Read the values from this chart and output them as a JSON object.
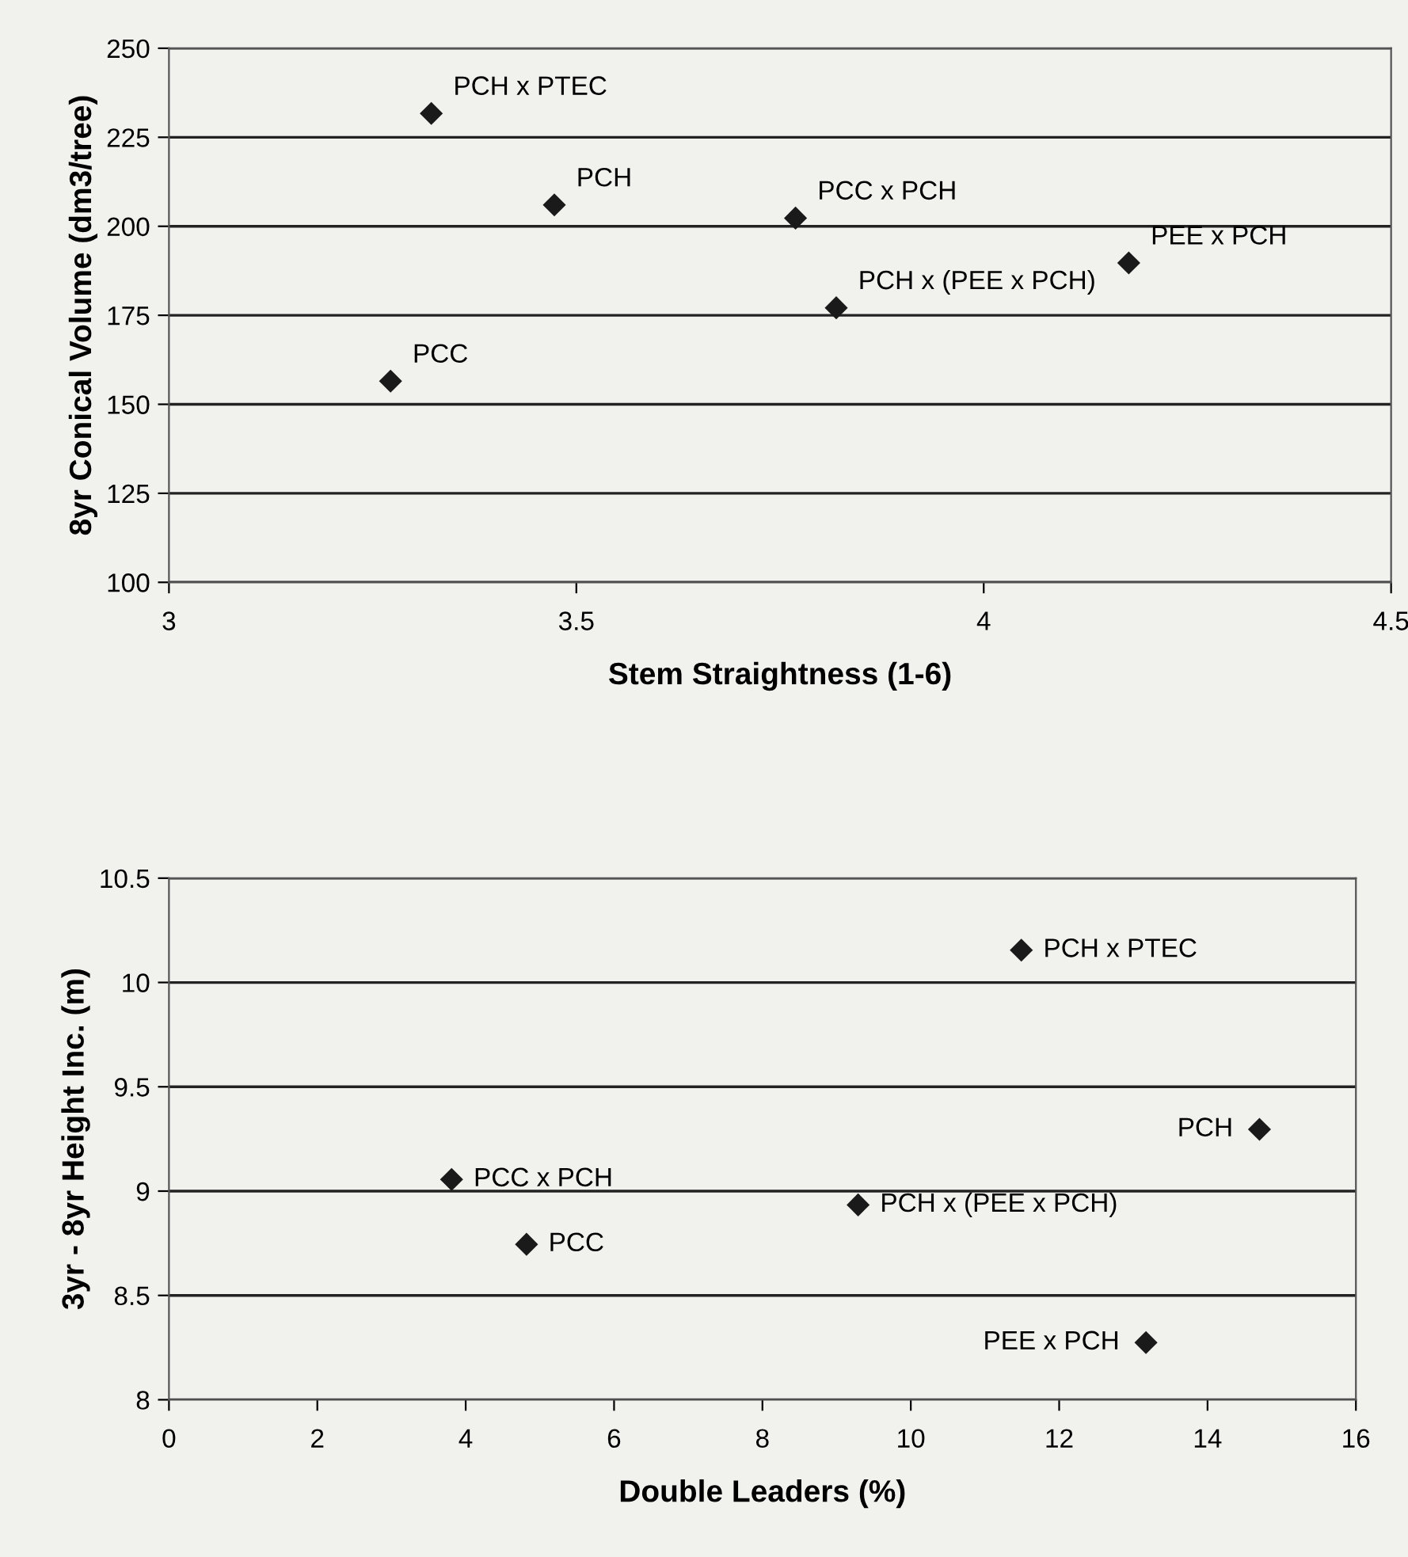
{
  "chart_data": [
    {
      "type": "scatter",
      "xlabel": "Stem Straightness (1-6)",
      "ylabel": "8yr Conical Volume (dm3/tree)",
      "x": [
        3.322,
        3.473,
        3.769,
        4.178,
        3.819,
        3.272
      ],
      "values": [
        231.7,
        206,
        202.3,
        189.7,
        177.1,
        156.5
      ],
      "color": "#1a1a1a",
      "marker": "diamond",
      "xlim": [
        3,
        4.5
      ],
      "ylim": [
        100,
        250
      ],
      "xticks": [
        3,
        3.5,
        4,
        4.5
      ],
      "yticks": [
        100,
        125,
        150,
        175,
        200,
        225,
        250
      ],
      "grid": "y",
      "annotations": [
        {
          "text": "PCH x PTEC",
          "x": 3.322,
          "y": 231.7
        },
        {
          "text": "PCH",
          "x": 3.473,
          "y": 206
        },
        {
          "text": "PCC x PCH",
          "x": 3.769,
          "y": 202.3
        },
        {
          "text": "PEE x PCH",
          "x": 4.178,
          "y": 189.7
        },
        {
          "text": "PCH x (PEE x PCH)",
          "x": 3.819,
          "y": 177.1
        },
        {
          "text": "PCC",
          "x": 3.272,
          "y": 156.5
        }
      ]
    },
    {
      "type": "scatter",
      "xlabel": "Double Leaders (%)",
      "ylabel": "3yr - 8yr Height Inc. (m)",
      "x": [
        11.49,
        14.7,
        3.81,
        9.29,
        4.82,
        13.17
      ],
      "values": [
        10.155,
        9.296,
        9.056,
        8.934,
        8.745,
        8.274
      ],
      "color": "#1a1a1a",
      "marker": "diamond",
      "xlim": [
        0,
        16
      ],
      "ylim": [
        8,
        10.5
      ],
      "xticks": [
        0,
        2,
        4,
        6,
        8,
        10,
        12,
        14,
        16
      ],
      "yticks": [
        8,
        8.5,
        9,
        9.5,
        10,
        10.5
      ],
      "grid": "y",
      "annotations": [
        {
          "text": "PCH x PTEC",
          "x": 11.49,
          "y": 10.155
        },
        {
          "text": "PCH",
          "x": 14.7,
          "y": 9.296
        },
        {
          "text": "PCC x PCH",
          "x": 3.81,
          "y": 9.056
        },
        {
          "text": "PCH x (PEE x PCH)",
          "x": 9.29,
          "y": 8.934
        },
        {
          "text": "PCC",
          "x": 4.82,
          "y": 8.745
        },
        {
          "text": "PEE x PCH",
          "x": 13.17,
          "y": 8.274
        }
      ]
    }
  ]
}
